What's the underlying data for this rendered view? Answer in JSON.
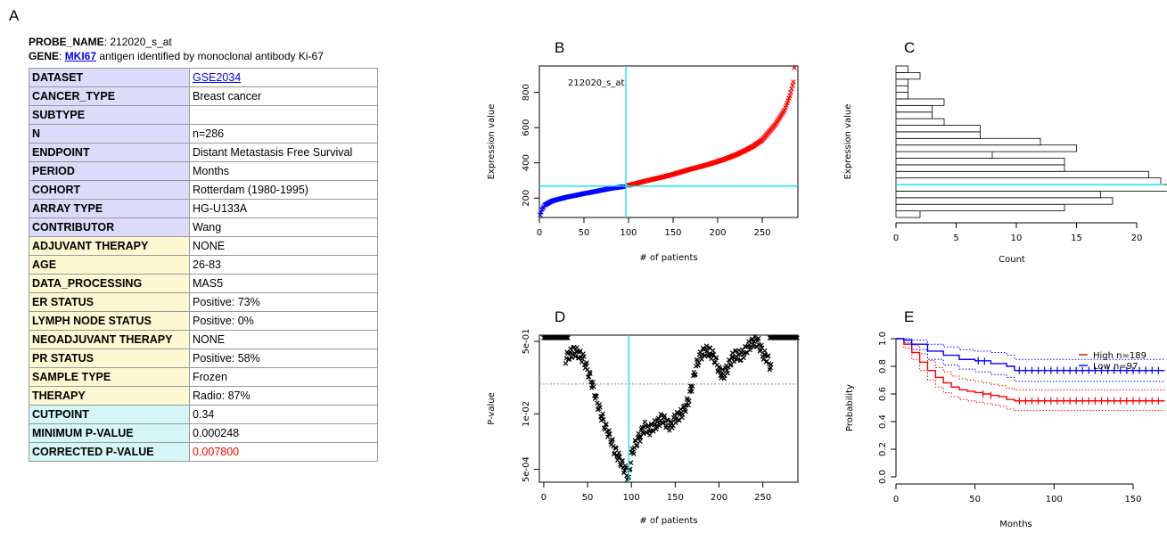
{
  "letters": {
    "A": "A",
    "B": "B",
    "C": "C",
    "D": "D",
    "E": "E"
  },
  "probe": {
    "label": "PROBE_NAME",
    "value": "212020_s_at"
  },
  "gene": {
    "label": "GENE",
    "symbol": "MKI67",
    "desc": "antigen identified by monoclonal antibody Ki-67"
  },
  "table": {
    "rows": [
      {
        "k": "DATASET",
        "v": "GSE2034",
        "color": "blue",
        "link": true
      },
      {
        "k": "CANCER_TYPE",
        "v": "Breast cancer",
        "color": "blue",
        "vpink": true
      },
      {
        "k": "SUBTYPE",
        "v": "",
        "color": "blue"
      },
      {
        "k": "N",
        "v": "n=286",
        "color": "blue"
      },
      {
        "k": "ENDPOINT",
        "v": "Distant Metastasis Free Survival",
        "color": "blue"
      },
      {
        "k": "PERIOD",
        "v": "Months",
        "color": "blue"
      },
      {
        "k": "COHORT",
        "v": "Rotterdam (1980-1995)",
        "color": "blue"
      },
      {
        "k": "ARRAY TYPE",
        "v": "HG-U133A",
        "color": "blue"
      },
      {
        "k": "CONTRIBUTOR",
        "v": "Wang",
        "color": "blue"
      },
      {
        "k": "ADJUVANT THERAPY",
        "v": "NONE",
        "color": "yellow"
      },
      {
        "k": "AGE",
        "v": "26-83",
        "color": "yellow"
      },
      {
        "k": "DATA_PROCESSING",
        "v": "MAS5",
        "color": "yellow"
      },
      {
        "k": "ER STATUS",
        "v": "Positive: 73%",
        "color": "yellow"
      },
      {
        "k": "LYMPH NODE STATUS",
        "v": "Positive: 0%",
        "color": "yellow"
      },
      {
        "k": "NEOADJUVANT THERAPY",
        "v": "NONE",
        "color": "yellow"
      },
      {
        "k": "PR STATUS",
        "v": "Positive: 58%",
        "color": "yellow"
      },
      {
        "k": "SAMPLE TYPE",
        "v": "Frozen",
        "color": "yellow"
      },
      {
        "k": "THERAPY",
        "v": "Radio: 87%",
        "color": "yellow"
      },
      {
        "k": "CUTPOINT",
        "v": "0.34",
        "color": "cyan"
      },
      {
        "k": "MINIMUM P-VALUE",
        "v": "0.000248",
        "color": "cyan"
      },
      {
        "k": "CORRECTED P-VALUE",
        "v": "0.007800",
        "color": "cyan",
        "vred": true
      }
    ]
  },
  "colors": {
    "low": "#0000ff",
    "high": "#ff0000",
    "cutline": "#00e5ee",
    "black": "#000000"
  },
  "chart_data": [
    {
      "id": "B",
      "type": "scatter",
      "title": "",
      "annotation": "212020_s_at",
      "xlabel": "# of patients",
      "ylabel": "Expression value",
      "xlim": [
        0,
        290
      ],
      "ylim": [
        90,
        950
      ],
      "xticks": [
        0,
        50,
        100,
        150,
        200,
        250
      ],
      "yticks": [
        200,
        400,
        600,
        800
      ],
      "cutpoint_x": 97,
      "cutpoint_y": 268,
      "series": [
        {
          "color": "blue",
          "x": [
            1,
            3,
            6,
            10,
            15,
            20,
            25,
            30,
            35,
            40,
            45,
            50,
            55,
            60,
            65,
            70,
            75,
            80,
            85,
            90,
            95
          ],
          "values": [
            105,
            135,
            160,
            172,
            185,
            192,
            198,
            205,
            210,
            215,
            220,
            226,
            230,
            235,
            240,
            245,
            250,
            255,
            258,
            262,
            266
          ]
        },
        {
          "color": "red",
          "x": [
            100,
            110,
            120,
            130,
            140,
            150,
            160,
            170,
            180,
            190,
            200,
            210,
            220,
            230,
            240,
            250,
            255,
            260,
            265,
            270,
            275,
            278,
            281,
            283,
            285,
            286
          ],
          "values": [
            272,
            285,
            298,
            310,
            322,
            335,
            350,
            365,
            378,
            392,
            408,
            425,
            445,
            468,
            495,
            530,
            560,
            590,
            620,
            660,
            700,
            740,
            780,
            820,
            860,
            940
          ]
        }
      ]
    },
    {
      "id": "C",
      "type": "bar",
      "orientation": "horizontal",
      "title": "",
      "xlabel": "Count",
      "ylabel": "Expression value",
      "xlim": [
        0,
        23
      ],
      "xticks": [
        0,
        5,
        10,
        15,
        20
      ],
      "cut_bin_index": 5,
      "values": [
        2,
        14,
        18,
        17,
        23,
        22,
        21,
        14,
        14,
        8,
        15,
        12,
        7,
        7,
        4,
        3,
        3,
        4,
        1,
        1,
        1,
        2,
        1
      ]
    },
    {
      "id": "D",
      "type": "scatter",
      "title": "",
      "xlabel": "# of patients",
      "ylabel": "P-value",
      "xlim": [
        -5,
        290
      ],
      "ylog": true,
      "ylim": [
        0.00025,
        0.7
      ],
      "xticks": [
        0,
        50,
        100,
        150,
        200,
        250
      ],
      "yticks": [
        0.0005,
        0.01,
        0.5
      ],
      "yticklabels": [
        "5e-04",
        "1e-02",
        "5e-01"
      ],
      "significance_line": 0.05,
      "cutpoint_x": 97,
      "band_ranges": [
        [
          0,
          28
        ],
        [
          258,
          290
        ]
      ],
      "x": [
        25,
        30,
        35,
        40,
        45,
        50,
        55,
        60,
        65,
        70,
        75,
        80,
        85,
        90,
        95,
        97,
        100,
        105,
        110,
        115,
        120,
        125,
        130,
        135,
        140,
        145,
        150,
        155,
        160,
        165,
        170,
        175,
        180,
        185,
        190,
        195,
        200,
        205,
        210,
        215,
        220,
        225,
        230,
        235,
        240,
        245,
        250,
        255,
        260
      ],
      "values": [
        0.2,
        0.25,
        0.3,
        0.25,
        0.2,
        0.1,
        0.05,
        0.02,
        0.01,
        0.005,
        0.003,
        0.0015,
        0.001,
        0.0006,
        0.0004,
        0.00025,
        0.001,
        0.002,
        0.003,
        0.005,
        0.004,
        0.005,
        0.006,
        0.008,
        0.006,
        0.005,
        0.008,
        0.009,
        0.012,
        0.02,
        0.05,
        0.15,
        0.25,
        0.3,
        0.28,
        0.2,
        0.1,
        0.08,
        0.12,
        0.2,
        0.25,
        0.22,
        0.3,
        0.4,
        0.5,
        0.45,
        0.25,
        0.2,
        0.1
      ]
    },
    {
      "id": "E",
      "type": "line",
      "title": "",
      "xlabel": "Months",
      "ylabel": "Probability",
      "xlim": [
        0,
        172
      ],
      "ylim": [
        0,
        1
      ],
      "xticks": [
        0,
        50,
        100,
        150
      ],
      "yticks": [
        0.0,
        0.2,
        0.4,
        0.6,
        0.8,
        1.0
      ],
      "yticklabels": [
        "0.0",
        "0.2",
        "0.4",
        "0.6",
        "0.8",
        "1.0"
      ],
      "legend": [
        "High n=189",
        "Low n=97"
      ],
      "legend_position": "top-right",
      "series": [
        {
          "name": "High n=189",
          "color": "red",
          "x": [
            0,
            5,
            10,
            15,
            20,
            25,
            30,
            35,
            40,
            45,
            50,
            55,
            60,
            65,
            70,
            75,
            80,
            170
          ],
          "values": [
            1.0,
            0.96,
            0.9,
            0.83,
            0.77,
            0.72,
            0.68,
            0.65,
            0.63,
            0.62,
            0.61,
            0.6,
            0.59,
            0.58,
            0.56,
            0.55,
            0.55,
            0.55
          ],
          "upper": [
            1.0,
            0.99,
            0.95,
            0.89,
            0.84,
            0.79,
            0.76,
            0.73,
            0.71,
            0.7,
            0.69,
            0.68,
            0.67,
            0.66,
            0.64,
            0.63,
            0.63,
            0.63
          ],
          "lower": [
            1.0,
            0.93,
            0.85,
            0.77,
            0.7,
            0.65,
            0.61,
            0.58,
            0.56,
            0.55,
            0.54,
            0.53,
            0.52,
            0.51,
            0.49,
            0.48,
            0.48,
            0.48
          ],
          "censor_x": [
            55,
            60,
            78,
            82,
            86,
            90,
            94,
            98,
            102,
            106,
            110,
            114,
            118,
            122,
            126,
            130,
            134,
            138,
            142,
            146,
            150,
            154,
            158,
            162,
            166
          ]
        },
        {
          "name": "Low n=97",
          "color": "blue",
          "x": [
            0,
            5,
            10,
            20,
            30,
            40,
            50,
            55,
            60,
            70,
            75,
            80,
            170
          ],
          "values": [
            1.0,
            0.99,
            0.96,
            0.91,
            0.88,
            0.85,
            0.84,
            0.84,
            0.82,
            0.8,
            0.77,
            0.77,
            0.77
          ],
          "upper": [
            1.0,
            1.0,
            0.99,
            0.96,
            0.94,
            0.92,
            0.91,
            0.91,
            0.9,
            0.88,
            0.85,
            0.85,
            0.85
          ],
          "lower": [
            1.0,
            0.97,
            0.92,
            0.85,
            0.81,
            0.78,
            0.76,
            0.76,
            0.74,
            0.72,
            0.69,
            0.69,
            0.69
          ],
          "censor_x": [
            52,
            56,
            78,
            82,
            86,
            90,
            94,
            98,
            102,
            106,
            110,
            114,
            118,
            122,
            126,
            130,
            134,
            138,
            142,
            146,
            150,
            154,
            158,
            162,
            166
          ]
        }
      ]
    }
  ]
}
